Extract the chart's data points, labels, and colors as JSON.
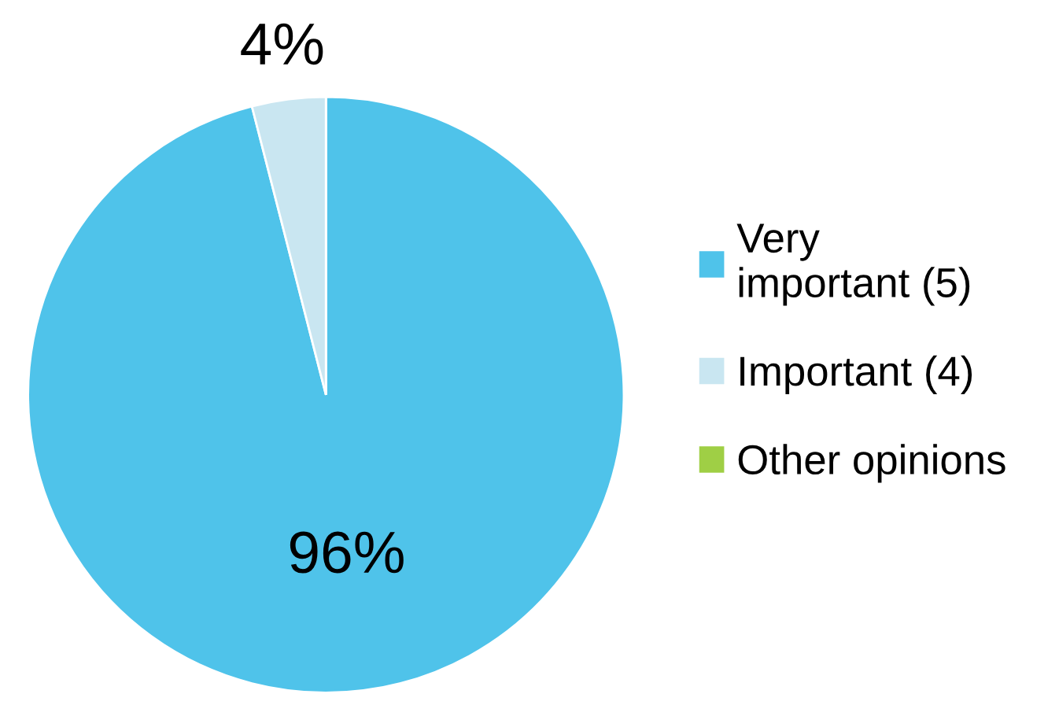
{
  "chart_data": {
    "type": "pie",
    "categories": [
      "Very important (5)",
      "Important (4)",
      "Other opinions"
    ],
    "values": [
      96,
      4,
      0
    ],
    "colors": [
      "#4fc3ea",
      "#c9e6f1",
      "#9fcf45"
    ],
    "value_labels": [
      "96%",
      "4%",
      null
    ],
    "legend": "right"
  }
}
